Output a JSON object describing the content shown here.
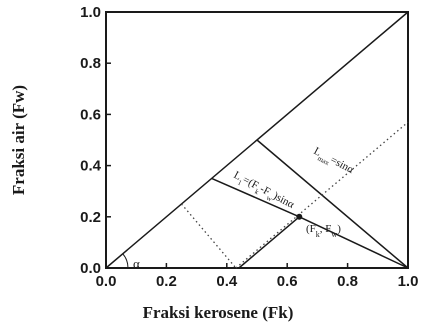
{
  "chart_data": {
    "type": "line",
    "title": "",
    "xlabel": "Fraksi kerosene (Fk)",
    "ylabel": "Fraksi air (Fw)",
    "xlim": [
      0,
      1
    ],
    "ylim": [
      0,
      1
    ],
    "x_ticks": [
      "0.0",
      "0.2",
      "0.4",
      "0.6",
      "0.8",
      "1.0"
    ],
    "y_ticks": [
      "0.0",
      "0.2",
      "0.4",
      "0.6",
      "0.8",
      "1.0"
    ],
    "grid": false,
    "series": [
      {
        "style": "solid",
        "points": [
          [
            0,
            0
          ],
          [
            1,
            1
          ]
        ]
      },
      {
        "style": "solid",
        "points": [
          [
            0.44,
            0
          ],
          [
            0.64,
            0.2
          ]
        ]
      },
      {
        "style": "solid",
        "points": [
          [
            0.35,
            0.35
          ],
          [
            0.64,
            0.2
          ],
          [
            1,
            0
          ]
        ]
      },
      {
        "style": "solid",
        "points": [
          [
            0.5,
            0.5
          ],
          [
            1,
            0
          ]
        ]
      },
      {
        "style": "dotted",
        "points": [
          [
            0.25,
            0.25
          ],
          [
            0.43,
            0
          ]
        ]
      },
      {
        "style": "dotted",
        "points": [
          [
            0.43,
            0
          ],
          [
            1,
            0.57
          ]
        ]
      }
    ],
    "marker": {
      "point": [
        0.64,
        0.2
      ],
      "label": "(F",
      "label_sub": "k",
      "label_sep": ", F",
      "label_sub2": "w",
      "label_end": ")"
    },
    "annotations": {
      "angle": "α",
      "line1": {
        "prefix": "L",
        "sub": "1",
        "body": "=(F",
        "sub2": "k",
        "body2": "-F",
        "sub3": "w",
        "body3": ")sinα"
      },
      "line2": {
        "prefix": "L",
        "sub": "max",
        "body": "=sinα"
      }
    }
  }
}
